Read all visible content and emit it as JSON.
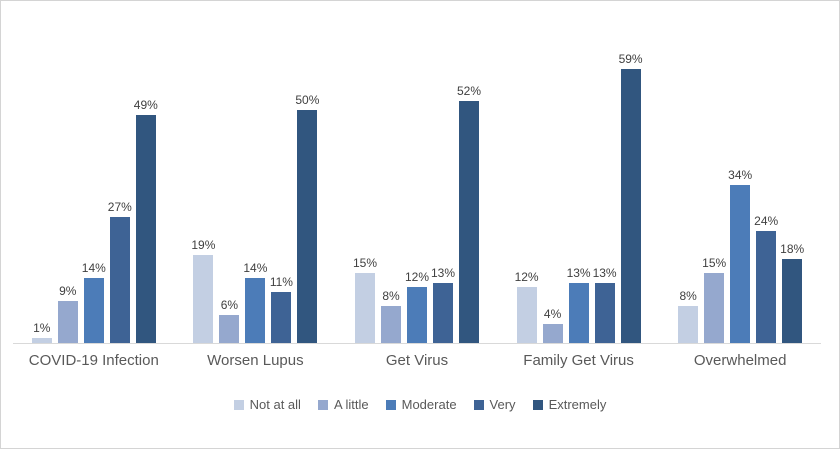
{
  "chart_data": {
    "type": "bar",
    "title": "",
    "categories": [
      "COVID-19 Infection",
      "Worsen Lupus",
      "Get Virus",
      "Family Get Virus",
      "Overwhelmed"
    ],
    "series": [
      {
        "name": "Not at all",
        "color": "#c3cfe3",
        "values": [
          1,
          19,
          15,
          12,
          8
        ]
      },
      {
        "name": "A little",
        "color": "#95a8ce",
        "values": [
          9,
          6,
          8,
          4,
          15
        ]
      },
      {
        "name": "Moderate",
        "color": "#4c7cb8",
        "values": [
          14,
          14,
          12,
          13,
          34
        ]
      },
      {
        "name": "Very",
        "color": "#3e6395",
        "values": [
          27,
          11,
          13,
          13,
          24
        ]
      },
      {
        "name": "Extremely",
        "color": "#31567f",
        "values": [
          49,
          50,
          52,
          59,
          18
        ]
      }
    ],
    "value_suffix": "%",
    "data_labels": [
      "1%",
      "9%",
      "14%",
      "27%",
      "49%",
      "19%",
      "6%",
      "14%",
      "11%",
      "50%",
      "15%",
      "8%",
      "12%",
      "13%",
      "52%",
      "12%",
      "4%",
      "13%",
      "13%",
      "59%",
      "8%",
      "15%",
      "34%",
      "24%",
      "18%"
    ],
    "xlabel": "",
    "ylabel": "",
    "ylim": [
      0,
      65
    ],
    "grid": false,
    "y_axis_visible": false,
    "legend_position": "bottom",
    "axis_line_color": "#d9d9d9",
    "data_label_color": "#404040",
    "axis_text_color": "#595959"
  }
}
